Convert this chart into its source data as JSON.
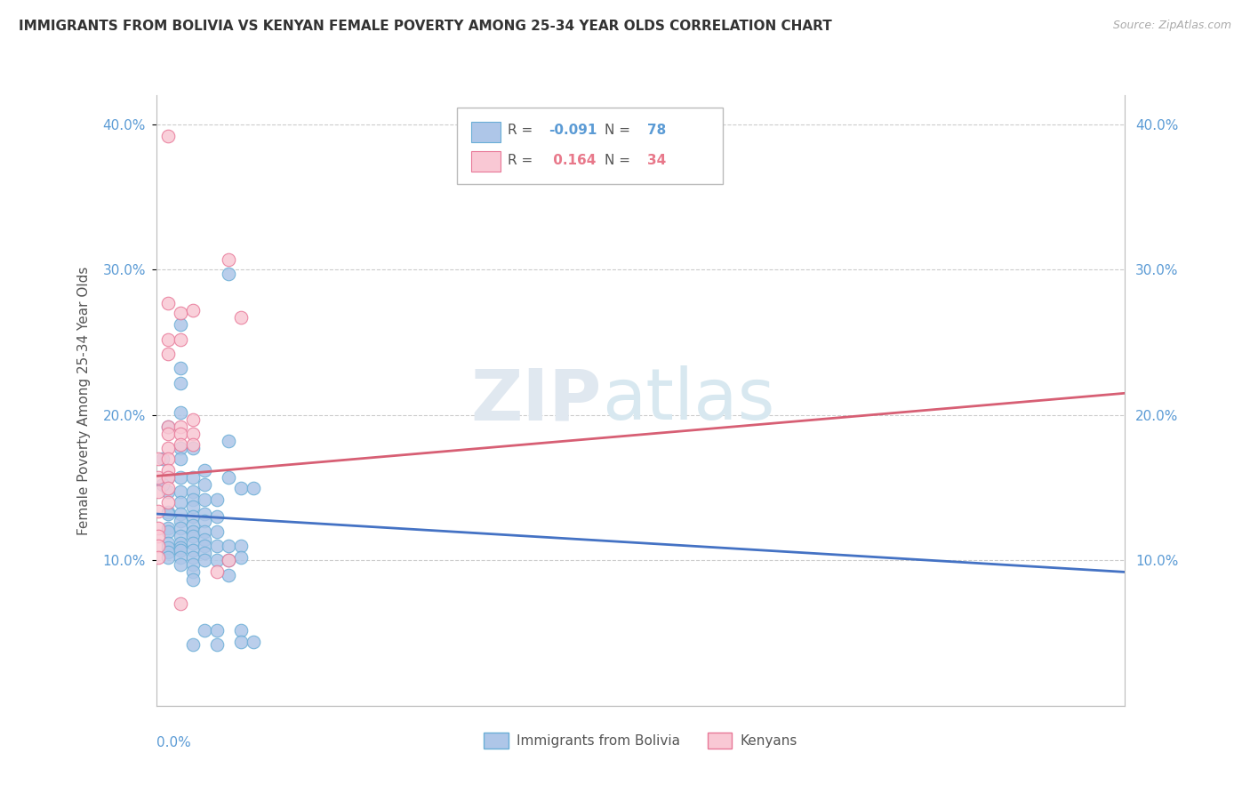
{
  "title": "IMMIGRANTS FROM BOLIVIA VS KENYAN FEMALE POVERTY AMONG 25-34 YEAR OLDS CORRELATION CHART",
  "source": "Source: ZipAtlas.com",
  "ylabel": "Female Poverty Among 25-34 Year Olds",
  "xlim": [
    0.0,
    0.08
  ],
  "ylim": [
    0.0,
    0.42
  ],
  "yticks": [
    0.1,
    0.2,
    0.3,
    0.4
  ],
  "ytick_labels": [
    "10.0%",
    "20.0%",
    "30.0%",
    "40.0%"
  ],
  "bolivia_color": "#aec6e8",
  "bolivia_edge": "#6aaed6",
  "kenya_color": "#f9c8d4",
  "kenya_edge": "#e87898",
  "bolivia_line_color": "#4472c4",
  "kenya_line_color": "#d75f74",
  "bolivia_R_str": "-0.091",
  "kenya_R_str": "0.164",
  "bolivia_N": 78,
  "kenya_N": 34,
  "bolivia_line": [
    [
      0.0,
      0.132
    ],
    [
      0.08,
      0.092
    ]
  ],
  "kenya_line": [
    [
      0.0,
      0.158
    ],
    [
      0.08,
      0.215
    ]
  ],
  "bolivia_points": [
    [
      0.0005,
      0.17
    ],
    [
      0.001,
      0.192
    ],
    [
      0.001,
      0.133
    ],
    [
      0.001,
      0.147
    ],
    [
      0.001,
      0.157
    ],
    [
      0.001,
      0.122
    ],
    [
      0.001,
      0.132
    ],
    [
      0.001,
      0.12
    ],
    [
      0.001,
      0.112
    ],
    [
      0.001,
      0.109
    ],
    [
      0.001,
      0.106
    ],
    [
      0.001,
      0.102
    ],
    [
      0.002,
      0.262
    ],
    [
      0.002,
      0.232
    ],
    [
      0.002,
      0.222
    ],
    [
      0.002,
      0.202
    ],
    [
      0.002,
      0.177
    ],
    [
      0.002,
      0.17
    ],
    [
      0.002,
      0.157
    ],
    [
      0.002,
      0.147
    ],
    [
      0.002,
      0.14
    ],
    [
      0.002,
      0.132
    ],
    [
      0.002,
      0.127
    ],
    [
      0.002,
      0.122
    ],
    [
      0.002,
      0.117
    ],
    [
      0.002,
      0.112
    ],
    [
      0.002,
      0.109
    ],
    [
      0.002,
      0.107
    ],
    [
      0.002,
      0.102
    ],
    [
      0.002,
      0.097
    ],
    [
      0.003,
      0.177
    ],
    [
      0.003,
      0.157
    ],
    [
      0.003,
      0.147
    ],
    [
      0.003,
      0.142
    ],
    [
      0.003,
      0.137
    ],
    [
      0.003,
      0.13
    ],
    [
      0.003,
      0.124
    ],
    [
      0.003,
      0.12
    ],
    [
      0.003,
      0.117
    ],
    [
      0.003,
      0.112
    ],
    [
      0.003,
      0.107
    ],
    [
      0.003,
      0.102
    ],
    [
      0.003,
      0.097
    ],
    [
      0.003,
      0.092
    ],
    [
      0.003,
      0.087
    ],
    [
      0.003,
      0.042
    ],
    [
      0.004,
      0.162
    ],
    [
      0.004,
      0.152
    ],
    [
      0.004,
      0.142
    ],
    [
      0.004,
      0.132
    ],
    [
      0.004,
      0.127
    ],
    [
      0.004,
      0.12
    ],
    [
      0.004,
      0.114
    ],
    [
      0.004,
      0.11
    ],
    [
      0.004,
      0.105
    ],
    [
      0.004,
      0.1
    ],
    [
      0.004,
      0.052
    ],
    [
      0.005,
      0.142
    ],
    [
      0.005,
      0.13
    ],
    [
      0.005,
      0.12
    ],
    [
      0.005,
      0.11
    ],
    [
      0.005,
      0.1
    ],
    [
      0.005,
      0.052
    ],
    [
      0.005,
      0.042
    ],
    [
      0.006,
      0.297
    ],
    [
      0.006,
      0.182
    ],
    [
      0.006,
      0.157
    ],
    [
      0.006,
      0.11
    ],
    [
      0.006,
      0.1
    ],
    [
      0.006,
      0.09
    ],
    [
      0.007,
      0.15
    ],
    [
      0.007,
      0.11
    ],
    [
      0.007,
      0.102
    ],
    [
      0.007,
      0.052
    ],
    [
      0.007,
      0.044
    ],
    [
      0.008,
      0.15
    ],
    [
      0.008,
      0.044
    ],
    [
      0.0005,
      0.152
    ]
  ],
  "kenya_points": [
    [
      0.0002,
      0.17
    ],
    [
      0.0002,
      0.157
    ],
    [
      0.0002,
      0.147
    ],
    [
      0.0002,
      0.134
    ],
    [
      0.0002,
      0.122
    ],
    [
      0.0002,
      0.117
    ],
    [
      0.0002,
      0.11
    ],
    [
      0.0002,
      0.102
    ],
    [
      0.001,
      0.392
    ],
    [
      0.001,
      0.277
    ],
    [
      0.001,
      0.252
    ],
    [
      0.001,
      0.242
    ],
    [
      0.001,
      0.192
    ],
    [
      0.001,
      0.187
    ],
    [
      0.001,
      0.177
    ],
    [
      0.001,
      0.17
    ],
    [
      0.001,
      0.162
    ],
    [
      0.001,
      0.157
    ],
    [
      0.001,
      0.15
    ],
    [
      0.001,
      0.14
    ],
    [
      0.002,
      0.27
    ],
    [
      0.002,
      0.252
    ],
    [
      0.002,
      0.192
    ],
    [
      0.002,
      0.187
    ],
    [
      0.002,
      0.18
    ],
    [
      0.002,
      0.07
    ],
    [
      0.003,
      0.272
    ],
    [
      0.003,
      0.197
    ],
    [
      0.003,
      0.187
    ],
    [
      0.003,
      0.18
    ],
    [
      0.005,
      0.092
    ],
    [
      0.006,
      0.307
    ],
    [
      0.006,
      0.1
    ],
    [
      0.007,
      0.267
    ]
  ]
}
